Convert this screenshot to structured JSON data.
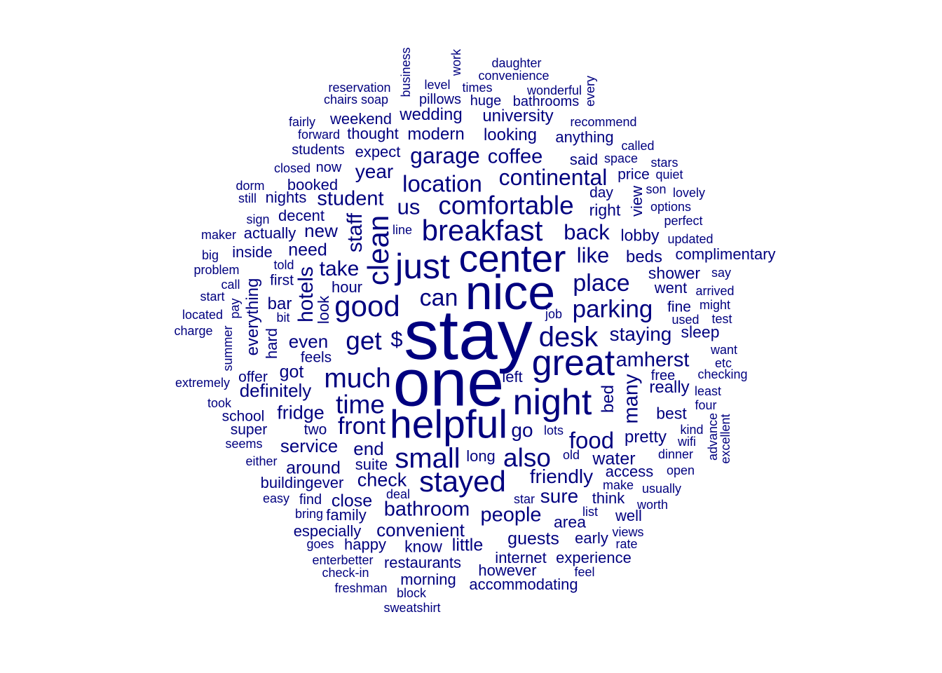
{
  "color": "#00007F",
  "words": [
    {
      "text": "stay",
      "size": 100
    },
    {
      "text": "one",
      "size": 95
    },
    {
      "text": "nice",
      "size": 70
    },
    {
      "text": "helpful",
      "size": 57
    },
    {
      "text": "center",
      "size": 55
    },
    {
      "text": "great",
      "size": 52
    },
    {
      "text": "night",
      "size": 52
    },
    {
      "text": "just",
      "size": 50
    },
    {
      "text": "clean",
      "size": 42
    },
    {
      "text": "stayed",
      "size": 42
    },
    {
      "text": "good",
      "size": 42
    },
    {
      "text": "breakfast",
      "size": 42
    },
    {
      "text": "small",
      "size": 40
    },
    {
      "text": "desk",
      "size": 40
    },
    {
      "text": "much",
      "size": 39
    },
    {
      "text": "comfortable",
      "size": 37
    },
    {
      "text": "also",
      "size": 37
    },
    {
      "text": "get",
      "size": 37
    },
    {
      "text": "time",
      "size": 37
    },
    {
      "text": "parking",
      "size": 35
    },
    {
      "text": "front",
      "size": 34
    },
    {
      "text": "place",
      "size": 34
    },
    {
      "text": "can",
      "size": 34
    },
    {
      "text": "food",
      "size": 33
    },
    {
      "text": "location",
      "size": 33
    },
    {
      "text": "continental",
      "size": 32
    },
    {
      "text": "garage",
      "size": 32
    },
    {
      "text": "like",
      "size": 31
    },
    {
      "text": "back",
      "size": 31
    },
    {
      "text": "us",
      "size": 31
    },
    {
      "text": "$",
      "size": 31
    },
    {
      "text": "hotels",
      "size": 30
    },
    {
      "text": "staff",
      "size": 30
    },
    {
      "text": "take",
      "size": 30
    },
    {
      "text": "bathroom",
      "size": 29
    },
    {
      "text": "many",
      "size": 29
    },
    {
      "text": "student",
      "size": 29
    },
    {
      "text": "amherst",
      "size": 29
    },
    {
      "text": "people",
      "size": 29
    },
    {
      "text": "coffee",
      "size": 29
    },
    {
      "text": "year",
      "size": 28
    },
    {
      "text": "friendly",
      "size": 28
    },
    {
      "text": "staying",
      "size": 28
    },
    {
      "text": "go",
      "size": 28
    },
    {
      "text": "sure",
      "size": 28
    },
    {
      "text": "check",
      "size": 27
    },
    {
      "text": "fridge",
      "size": 27
    },
    {
      "text": "convenient",
      "size": 26
    },
    {
      "text": "service",
      "size": 26
    },
    {
      "text": "end",
      "size": 26
    },
    {
      "text": "even",
      "size": 26
    },
    {
      "text": "new",
      "size": 26
    },
    {
      "text": "definitely",
      "size": 26
    },
    {
      "text": "close",
      "size": 25
    },
    {
      "text": "around",
      "size": 25
    },
    {
      "text": "little",
      "size": 25
    },
    {
      "text": "guests",
      "size": 25
    },
    {
      "text": "need",
      "size": 25
    },
    {
      "text": "got",
      "size": 25
    },
    {
      "text": "water",
      "size": 25
    },
    {
      "text": "pretty",
      "size": 24
    },
    {
      "text": "everything",
      "size": 24
    },
    {
      "text": "beds",
      "size": 24
    },
    {
      "text": "really",
      "size": 24
    },
    {
      "text": "bar",
      "size": 24
    },
    {
      "text": "university",
      "size": 24
    },
    {
      "text": "wedding",
      "size": 24
    },
    {
      "text": "modern",
      "size": 24
    },
    {
      "text": "looking",
      "size": 24
    },
    {
      "text": "bed",
      "size": 24
    },
    {
      "text": "lobby",
      "size": 23
    },
    {
      "text": "right",
      "size": 23
    },
    {
      "text": "shower",
      "size": 23
    },
    {
      "text": "best",
      "size": 23
    },
    {
      "text": "sleep",
      "size": 23
    },
    {
      "text": "area",
      "size": 23
    },
    {
      "text": "know",
      "size": 23
    },
    {
      "text": "complimentary",
      "size": 22
    },
    {
      "text": "look",
      "size": 22
    },
    {
      "text": "view",
      "size": 22
    },
    {
      "text": "access",
      "size": 22
    },
    {
      "text": "think",
      "size": 22
    },
    {
      "text": "well",
      "size": 22
    },
    {
      "text": "went",
      "size": 22
    },
    {
      "text": "said",
      "size": 22
    },
    {
      "text": "anything",
      "size": 22
    },
    {
      "text": "hard",
      "size": 22
    },
    {
      "text": "expect",
      "size": 22
    },
    {
      "text": "thought",
      "size": 22
    },
    {
      "text": "weekend",
      "size": 22
    },
    {
      "text": "actually",
      "size": 22
    },
    {
      "text": "decent",
      "size": 22
    },
    {
      "text": "booked",
      "size": 22
    },
    {
      "text": "nights",
      "size": 22
    },
    {
      "text": "hour",
      "size": 22
    },
    {
      "text": "left",
      "size": 22
    },
    {
      "text": "long",
      "size": 22
    },
    {
      "text": "suite",
      "size": 22
    },
    {
      "text": "especially",
      "size": 22
    },
    {
      "text": "happy",
      "size": 22
    },
    {
      "text": "restaurants",
      "size": 22
    },
    {
      "text": "morning",
      "size": 22
    },
    {
      "text": "however",
      "size": 22
    },
    {
      "text": "accommodating",
      "size": 22
    },
    {
      "text": "internet",
      "size": 22
    },
    {
      "text": "experience",
      "size": 22
    },
    {
      "text": "early",
      "size": 22
    },
    {
      "text": "buildingever",
      "size": 22
    },
    {
      "text": "family",
      "size": 22
    },
    {
      "text": "inside",
      "size": 22
    },
    {
      "text": "first",
      "size": 21
    },
    {
      "text": "two",
      "size": 21
    },
    {
      "text": "super",
      "size": 21
    },
    {
      "text": "school",
      "size": 21
    },
    {
      "text": "offer",
      "size": 21
    },
    {
      "text": "feels",
      "size": 21
    },
    {
      "text": "fine",
      "size": 21
    },
    {
      "text": "price",
      "size": 21
    },
    {
      "text": "day",
      "size": 21
    },
    {
      "text": "students",
      "size": 20
    },
    {
      "text": "pillows",
      "size": 20
    },
    {
      "text": "huge",
      "size": 20
    },
    {
      "text": "bathrooms",
      "size": 20
    },
    {
      "text": "free",
      "size": 20
    },
    {
      "text": "find",
      "size": 20
    },
    {
      "text": "level",
      "size": 18
    },
    {
      "text": "times",
      "size": 18
    },
    {
      "text": "daughter",
      "size": 18
    },
    {
      "text": "convenience",
      "size": 18
    },
    {
      "text": "reservation",
      "size": 18
    },
    {
      "text": "chairs soap",
      "size": 18
    },
    {
      "text": "wonderful",
      "size": 18
    },
    {
      "text": "recommend",
      "size": 18
    },
    {
      "text": "fairly",
      "size": 18
    },
    {
      "text": "forward",
      "size": 18
    },
    {
      "text": "called",
      "size": 18
    },
    {
      "text": "space",
      "size": 18
    },
    {
      "text": "stars",
      "size": 18
    },
    {
      "text": "quiet",
      "size": 18
    },
    {
      "text": "son",
      "size": 18
    },
    {
      "text": "lovely",
      "size": 18
    },
    {
      "text": "options",
      "size": 18
    },
    {
      "text": "perfect",
      "size": 18
    },
    {
      "text": "updated",
      "size": 18
    },
    {
      "text": "say",
      "size": 18
    },
    {
      "text": "arrived",
      "size": 18
    },
    {
      "text": "might",
      "size": 18
    },
    {
      "text": "used",
      "size": 18
    },
    {
      "text": "test",
      "size": 18
    },
    {
      "text": "want",
      "size": 18
    },
    {
      "text": "etc",
      "size": 18
    },
    {
      "text": "checking",
      "size": 18
    },
    {
      "text": "least",
      "size": 18
    },
    {
      "text": "four",
      "size": 18
    },
    {
      "text": "kind",
      "size": 18
    },
    {
      "text": "wifi",
      "size": 18
    },
    {
      "text": "dinner",
      "size": 18
    },
    {
      "text": "open",
      "size": 18
    },
    {
      "text": "usually",
      "size": 18
    },
    {
      "text": "worth",
      "size": 18
    },
    {
      "text": "views",
      "size": 18
    },
    {
      "text": "rate",
      "size": 18
    },
    {
      "text": "feel",
      "size": 18
    },
    {
      "text": "make",
      "size": 18
    },
    {
      "text": "star",
      "size": 18
    },
    {
      "text": "list",
      "size": 18
    },
    {
      "text": "lots",
      "size": 18
    },
    {
      "text": "old",
      "size": 18
    },
    {
      "text": "job",
      "size": 18
    },
    {
      "text": "line",
      "size": 18
    },
    {
      "text": "closed",
      "size": 18
    },
    {
      "text": "now",
      "size": 20
    },
    {
      "text": "dorm",
      "size": 18
    },
    {
      "text": "still",
      "size": 18
    },
    {
      "text": "sign",
      "size": 18
    },
    {
      "text": "maker",
      "size": 18
    },
    {
      "text": "big",
      "size": 18
    },
    {
      "text": "problem",
      "size": 18
    },
    {
      "text": "told",
      "size": 18
    },
    {
      "text": "call",
      "size": 18
    },
    {
      "text": "start",
      "size": 18
    },
    {
      "text": "located",
      "size": 18
    },
    {
      "text": "bit",
      "size": 18
    },
    {
      "text": "charge",
      "size": 18
    },
    {
      "text": "pay",
      "size": 18
    },
    {
      "text": "summer",
      "size": 18
    },
    {
      "text": "extremely",
      "size": 18
    },
    {
      "text": "took",
      "size": 18
    },
    {
      "text": "seems",
      "size": 18
    },
    {
      "text": "either",
      "size": 18
    },
    {
      "text": "easy",
      "size": 18
    },
    {
      "text": "bring",
      "size": 18
    },
    {
      "text": "deal",
      "size": 18
    },
    {
      "text": "goes",
      "size": 18
    },
    {
      "text": "enterbetter",
      "size": 18
    },
    {
      "text": "check-in",
      "size": 18
    },
    {
      "text": "freshman",
      "size": 18
    },
    {
      "text": "block",
      "size": 18
    },
    {
      "text": "sweatshirt",
      "size": 18
    },
    {
      "text": "business",
      "size": 18
    },
    {
      "text": "work",
      "size": 18
    },
    {
      "text": "every",
      "size": 18
    },
    {
      "text": "advance",
      "size": 18
    },
    {
      "text": "excellent",
      "size": 18
    }
  ]
}
